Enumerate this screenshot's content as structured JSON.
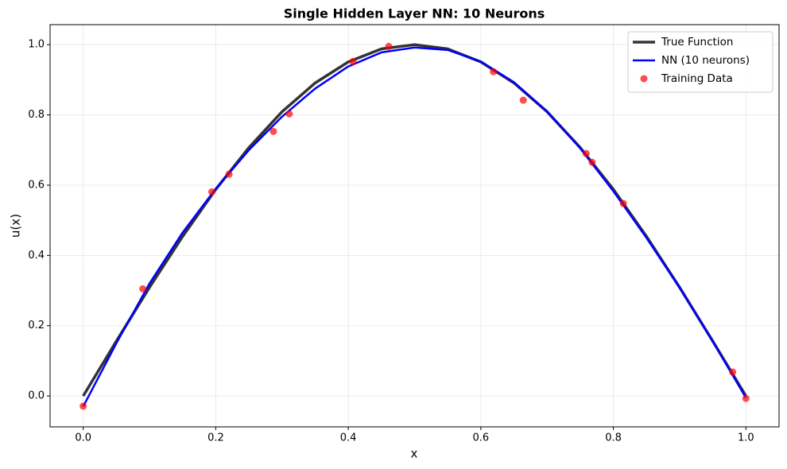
{
  "chart_data": {
    "type": "line",
    "title": "Single Hidden Layer NN: 10 Neurons",
    "xlabel": "x",
    "ylabel": "u(x)",
    "series": [
      {
        "name": "True Function",
        "type": "line",
        "color": "#333333",
        "x": [
          0,
          0.05,
          0.1,
          0.15,
          0.2,
          0.25,
          0.3,
          0.35,
          0.4,
          0.45,
          0.5,
          0.55,
          0.6,
          0.65,
          0.7,
          0.75,
          0.8,
          0.85,
          0.9,
          0.95,
          1.0
        ],
        "values": [
          0,
          0.156,
          0.309,
          0.454,
          0.588,
          0.707,
          0.809,
          0.891,
          0.951,
          0.988,
          1.0,
          0.988,
          0.951,
          0.891,
          0.809,
          0.707,
          0.588,
          0.454,
          0.309,
          0.156,
          0
        ]
      },
      {
        "name": "NN (10 neurons)",
        "type": "line",
        "color": "#0000ff",
        "x": [
          0,
          0.05,
          0.1,
          0.15,
          0.2,
          0.25,
          0.3,
          0.35,
          0.4,
          0.45,
          0.5,
          0.55,
          0.6,
          0.65,
          0.7,
          0.75,
          0.8,
          0.85,
          0.9,
          0.95,
          1.0
        ],
        "values": [
          -0.03,
          0.15,
          0.32,
          0.465,
          0.59,
          0.7,
          0.795,
          0.875,
          0.938,
          0.978,
          0.992,
          0.985,
          0.952,
          0.893,
          0.81,
          0.705,
          0.583,
          0.45,
          0.308,
          0.155,
          -0.005
        ]
      },
      {
        "name": "Training Data",
        "type": "scatter",
        "color": "#ff0000",
        "x": [
          0,
          0.09,
          0.194,
          0.22,
          0.287,
          0.311,
          0.407,
          0.461,
          0.619,
          0.664,
          0.759,
          0.768,
          0.815,
          0.98,
          1.0
        ],
        "values": [
          -0.029,
          0.305,
          0.581,
          0.631,
          0.753,
          0.803,
          0.952,
          0.995,
          0.923,
          0.842,
          0.69,
          0.665,
          0.548,
          0.068,
          -0.007
        ]
      }
    ],
    "xlim": [
      -0.05,
      1.05
    ],
    "ylim": [
      -0.088,
      1.057
    ],
    "xticks": [
      {
        "value": 0,
        "label": "0.0"
      },
      0.2,
      0.4,
      0.6,
      0.8,
      {
        "value": 1,
        "label": "1.0"
      }
    ],
    "yticks": [
      {
        "value": 0,
        "label": "0.0"
      },
      0.2,
      0.4,
      0.6,
      0.8,
      {
        "value": 1,
        "label": "1.0"
      }
    ],
    "grid": true,
    "legend": "upper right"
  }
}
